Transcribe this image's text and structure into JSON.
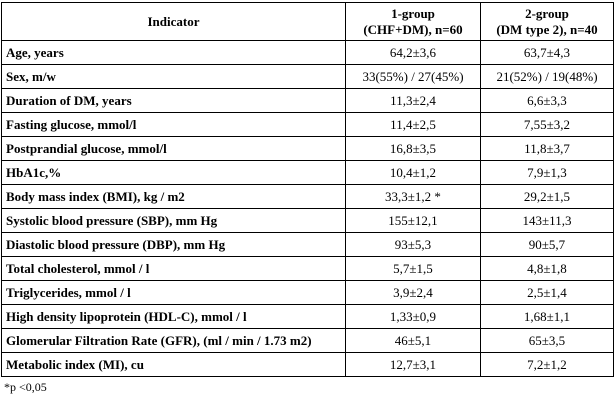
{
  "table": {
    "header": {
      "indicator": "Indicator",
      "group1": {
        "line1": "1-group",
        "line2": "(CHF+DM), n=60"
      },
      "group2": {
        "line1": "2-group",
        "line2": "(DM type 2), n=40"
      }
    },
    "rows": [
      [
        "Age, years",
        "64,2±3,6",
        "63,7±4,3"
      ],
      [
        "Sex, m/w",
        "33(55%) / 27(45%)",
        "21(52%) / 19(48%)"
      ],
      [
        "Duration of DM, years",
        "11,3±2,4",
        "6,6±3,3"
      ],
      [
        "Fasting glucose, mmol/l",
        "11,4±2,5",
        "7,55±3,2"
      ],
      [
        "Postprandial glucose, mmol/l",
        "16,8±3,5",
        "11,8±3,7"
      ],
      [
        "HbA1c,%",
        "10,4±1,2",
        "7,9±1,3"
      ],
      [
        "Body mass index (BMI), kg / m2",
        "33,3±1,2 *",
        "29,2±1,5"
      ],
      [
        "Systolic blood pressure (SBP), mm Hg",
        "155±12,1",
        "143±11,3"
      ],
      [
        "Diastolic blood pressure (DBP), mm Hg",
        "93±5,3",
        "90±5,7"
      ],
      [
        "Total cholesterol, mmol / l",
        "5,7±1,5",
        "4,8±1,8"
      ],
      [
        "Triglycerides, mmol / l",
        "3,9±2,4",
        "2,5±1,4"
      ],
      [
        "High density lipoprotein (HDL-C), mmol / l",
        "1,33±0,9",
        "1,68±1,1"
      ],
      [
        "Glomerular Filtration Rate (GFR), (ml / min / 1.73 m2)",
        "46±5,1",
        "65±3,5"
      ],
      [
        "Metabolic index (MI), cu",
        "12,7±3,1",
        "7,2±1,2"
      ]
    ],
    "footnote": "*p <0,05"
  }
}
